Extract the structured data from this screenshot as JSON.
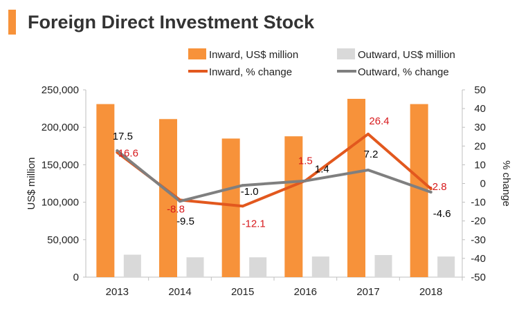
{
  "title": "Foreign Direct Investment Stock",
  "colors": {
    "title_bar": "#F7923A",
    "inward_bar": "#F7923A",
    "outward_bar": "#D9D9D9",
    "inward_line": "#E2581E",
    "outward_line": "#7F7F7F",
    "inward_label": "#D7191C",
    "outward_label": "#000000",
    "text": "#222222",
    "axis": "#BFBFBF"
  },
  "chart_data": {
    "type": "bar",
    "categories": [
      "2013",
      "2014",
      "2015",
      "2016",
      "2017",
      "2018"
    ],
    "series": [
      {
        "name": "Inward, US$ million",
        "kind": "bar",
        "axis": "left",
        "values": [
          231000,
          211000,
          185000,
          188000,
          238000,
          231000
        ]
      },
      {
        "name": "Outward, US$ million",
        "kind": "bar",
        "axis": "left",
        "values": [
          30000,
          26500,
          26500,
          27500,
          29500,
          27500
        ]
      },
      {
        "name": "Inward, % change",
        "kind": "line",
        "axis": "right",
        "values": [
          16.6,
          -8.8,
          -12.1,
          1.5,
          26.4,
          -2.8
        ],
        "labels": [
          "16.6",
          "-8.8",
          "-12.1",
          "1.5",
          "26.4",
          "-2.8"
        ]
      },
      {
        "name": "Outward, % change",
        "kind": "line",
        "axis": "right",
        "values": [
          17.5,
          -9.5,
          -1.0,
          1.4,
          7.2,
          -4.6
        ],
        "labels": [
          "17.5",
          "-9.5",
          "-1.0",
          "1.4",
          "7.2",
          "-4.6"
        ]
      }
    ],
    "ylabel": "US$ million",
    "y2label": "% change",
    "ylim": [
      0,
      250000
    ],
    "y2lim": [
      -50,
      50
    ],
    "yticks": [
      "0",
      "50,000",
      "100,000",
      "150,000",
      "200,000",
      "250,000"
    ],
    "y2ticks": [
      "-50",
      "-40",
      "-30",
      "-20",
      "-10",
      "0",
      "10",
      "20",
      "30",
      "40",
      "50"
    ],
    "legend_position": "top",
    "grid": false
  }
}
